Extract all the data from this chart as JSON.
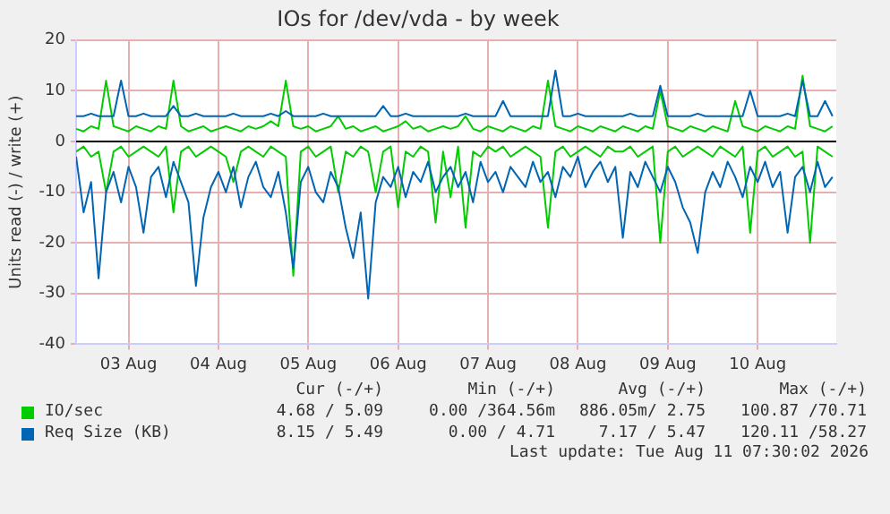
{
  "chart_data": {
    "type": "line",
    "title": "IOs for /dev/vda - by week",
    "ylabel": "Units read (-) / write (+)",
    "x": [
      "2026-08-02T22:00",
      "2026-08-03T00:00",
      "2026-08-03T02:00",
      "2026-08-03T04:00",
      "2026-08-03T06:00",
      "2026-08-03T08:00",
      "2026-08-03T10:00",
      "2026-08-03T12:00",
      "2026-08-03T14:00",
      "2026-08-03T16:00",
      "2026-08-03T18:00",
      "2026-08-03T20:00",
      "2026-08-03T22:00",
      "2026-08-04T00:00",
      "2026-08-04T02:00",
      "2026-08-04T04:00",
      "2026-08-04T06:00",
      "2026-08-04T08:00",
      "2026-08-04T10:00",
      "2026-08-04T12:00",
      "2026-08-04T14:00",
      "2026-08-04T16:00",
      "2026-08-04T18:00",
      "2026-08-04T20:00",
      "2026-08-04T22:00",
      "2026-08-05T00:00",
      "2026-08-05T02:00",
      "2026-08-05T04:00",
      "2026-08-05T06:00",
      "2026-08-05T08:00",
      "2026-08-05T10:00",
      "2026-08-05T12:00",
      "2026-08-05T14:00",
      "2026-08-05T16:00",
      "2026-08-05T18:00",
      "2026-08-05T20:00",
      "2026-08-05T22:00",
      "2026-08-06T00:00",
      "2026-08-06T02:00",
      "2026-08-06T04:00",
      "2026-08-06T06:00",
      "2026-08-06T08:00",
      "2026-08-06T10:00",
      "2026-08-06T12:00",
      "2026-08-06T14:00",
      "2026-08-06T16:00",
      "2026-08-06T18:00",
      "2026-08-06T20:00",
      "2026-08-06T22:00",
      "2026-08-07T00:00",
      "2026-08-07T02:00",
      "2026-08-07T04:00",
      "2026-08-07T06:00",
      "2026-08-07T08:00",
      "2026-08-07T10:00",
      "2026-08-07T12:00",
      "2026-08-07T14:00",
      "2026-08-07T16:00",
      "2026-08-07T18:00",
      "2026-08-07T20:00",
      "2026-08-07T22:00",
      "2026-08-08T00:00",
      "2026-08-08T02:00",
      "2026-08-08T04:00",
      "2026-08-08T06:00",
      "2026-08-08T08:00",
      "2026-08-08T10:00",
      "2026-08-08T12:00",
      "2026-08-08T14:00",
      "2026-08-08T16:00",
      "2026-08-08T18:00",
      "2026-08-08T20:00",
      "2026-08-08T22:00",
      "2026-08-09T00:00",
      "2026-08-09T02:00",
      "2026-08-09T04:00",
      "2026-08-09T06:00",
      "2026-08-09T08:00",
      "2026-08-09T10:00",
      "2026-08-09T12:00",
      "2026-08-09T14:00",
      "2026-08-09T16:00",
      "2026-08-09T18:00",
      "2026-08-09T20:00",
      "2026-08-09T22:00",
      "2026-08-10T00:00",
      "2026-08-10T02:00",
      "2026-08-10T04:00",
      "2026-08-10T06:00",
      "2026-08-10T08:00",
      "2026-08-10T10:00",
      "2026-08-10T12:00",
      "2026-08-10T14:00",
      "2026-08-10T16:00",
      "2026-08-10T18:00",
      "2026-08-10T20:00",
      "2026-08-10T22:00",
      "2026-08-11T00:00",
      "2026-08-11T02:00",
      "2026-08-11T04:00",
      "2026-08-11T06:00",
      "2026-08-11T08:00"
    ],
    "series": [
      {
        "color": "#0066b3",
        "values": [
          -3,
          -14,
          -8,
          -27,
          -10,
          -6,
          -12,
          -5,
          -9,
          -18,
          -7,
          -5,
          -11,
          -4,
          -8,
          -12,
          -28.5,
          -15,
          -9,
          -6,
          -10,
          -5,
          -13,
          -7,
          -4,
          -9,
          -11,
          -6,
          -14,
          -25,
          -8,
          -5,
          -10,
          -12,
          -6,
          -9,
          -17,
          -23,
          -14,
          -31,
          -12,
          -7,
          -9,
          -5,
          -11,
          -6,
          -8,
          -4,
          -10,
          -7,
          -5,
          -9,
          -6,
          -12,
          -4,
          -8,
          -6,
          -10,
          -5,
          -7,
          -9,
          -4,
          -8,
          -6,
          -11,
          -5,
          -7,
          -3,
          -9,
          -6,
          -4,
          -8,
          -5,
          -19,
          -6,
          -9,
          -4,
          -7,
          -10,
          -5,
          -8,
          -13,
          -16,
          -22,
          -10,
          -6,
          -9,
          -4,
          -7,
          -11,
          -5,
          -8,
          -4,
          -9,
          -6,
          -18,
          -7,
          -5,
          -10,
          -4,
          -9,
          -7
        ]
      },
      {
        "name": "Req Size (KB)",
        "color": "#0066b3",
        "values": [
          5,
          5,
          5.5,
          5,
          5,
          5,
          12,
          5,
          5,
          5.5,
          5,
          5,
          5,
          7,
          5,
          5,
          5.5,
          5,
          5,
          5,
          5,
          5.5,
          5,
          5,
          5,
          5,
          5.5,
          5,
          6,
          5,
          5,
          5,
          5,
          5.5,
          5,
          5,
          5,
          5,
          5,
          5,
          5,
          7,
          5,
          5,
          5.5,
          5,
          5,
          5,
          5,
          5,
          5,
          5,
          5.5,
          5,
          5,
          5,
          5,
          8,
          5,
          5,
          5,
          5,
          5,
          5,
          14,
          5,
          5,
          5.5,
          5,
          5,
          5,
          5,
          5,
          5,
          5.5,
          5,
          5,
          5,
          11,
          5,
          5,
          5,
          5,
          5.5,
          5,
          5,
          5,
          5,
          5,
          5,
          10,
          5,
          5,
          5,
          5,
          5.5,
          5,
          12,
          5,
          5,
          8,
          5
        ]
      },
      {
        "color": "#00cc00",
        "values": [
          -2,
          -1,
          -3,
          -2,
          -10,
          -2,
          -1,
          -3,
          -2,
          -1,
          -2,
          -3,
          -1,
          -14,
          -2,
          -1,
          -3,
          -2,
          -1,
          -2,
          -3,
          -8,
          -2,
          -1,
          -2,
          -3,
          -1,
          -2,
          -3,
          -26.5,
          -2,
          -1,
          -3,
          -2,
          -1,
          -10,
          -2,
          -3,
          -1,
          -2,
          -10,
          -2,
          -1,
          -13,
          -2,
          -3,
          -1,
          -2,
          -16,
          -2,
          -11,
          -1,
          -17,
          -2,
          -3,
          -1,
          -2,
          -1,
          -3,
          -2,
          -1,
          -2,
          -3,
          -17,
          -2,
          -1,
          -3,
          -2,
          -1,
          -2,
          -3,
          -1,
          -2,
          -2,
          -1,
          -3,
          -2,
          -1,
          -20,
          -2,
          -1,
          -3,
          -2,
          -1,
          -2,
          -3,
          -1,
          -2,
          -3,
          -1,
          -18,
          -2,
          -1,
          -3,
          -2,
          -1,
          -3,
          -2,
          -20,
          -1,
          -2,
          -3
        ]
      },
      {
        "name": "IO/sec",
        "color": "#00cc00",
        "values": [
          2.5,
          2,
          3,
          2.5,
          12,
          3,
          2.5,
          2,
          3,
          2.5,
          2,
          3,
          2.5,
          12,
          3,
          2,
          2.5,
          3,
          2,
          2.5,
          3,
          2.5,
          2,
          3,
          2.5,
          3,
          4,
          3,
          12,
          3,
          2.5,
          3,
          2,
          2.5,
          3,
          5,
          2.5,
          3,
          2,
          2.5,
          3,
          2,
          2.5,
          3,
          4,
          2.5,
          3,
          2,
          2.5,
          3,
          2.5,
          3,
          5,
          2.5,
          2,
          3,
          2.5,
          2,
          3,
          2.5,
          2,
          3,
          2.5,
          12,
          3,
          2.5,
          2,
          3,
          2.5,
          2,
          3,
          2.5,
          2,
          3,
          2.5,
          2,
          3,
          2.5,
          10,
          3,
          2.5,
          2,
          3,
          2.5,
          2,
          3,
          2.5,
          2,
          8,
          3,
          2.5,
          2,
          3,
          2.5,
          2,
          3,
          2.5,
          13,
          3,
          2.5,
          2,
          3
        ]
      }
    ],
    "xlim": [
      "2026-08-02T22:00",
      "2026-08-11T09:00"
    ],
    "xticks": [
      {
        "value": "2026-08-03T12:00",
        "label": "03 Aug"
      },
      {
        "value": "2026-08-04T12:00",
        "label": "04 Aug"
      },
      {
        "value": "2026-08-05T12:00",
        "label": "05 Aug"
      },
      {
        "value": "2026-08-06T12:00",
        "label": "06 Aug"
      },
      {
        "value": "2026-08-07T12:00",
        "label": "07 Aug"
      },
      {
        "value": "2026-08-08T12:00",
        "label": "08 Aug"
      },
      {
        "value": "2026-08-09T12:00",
        "label": "09 Aug"
      },
      {
        "value": "2026-08-10T12:00",
        "label": "10 Aug"
      }
    ],
    "ylim": [
      -40,
      20
    ],
    "yticks": [
      -40,
      -30,
      -20,
      -10,
      0,
      10,
      20
    ],
    "grid": true,
    "legend": "bottom left",
    "marker": "none",
    "line_style": "solid",
    "annotations": [
      "Cur (-/+)",
      "Min (-/+)",
      "Avg (-/+)",
      "Max (-/+)",
      "4.68 / 5.09",
      "0.00 /364.56m",
      "886.05m/ 2.75",
      "100.87 /70.71",
      "8.15 / 5.49",
      "0.00 / 4.71",
      "7.17 / 5.47",
      "120.11 /58.27",
      "Last update: Tue Aug 11 07:30:02 2026"
    ]
  }
}
